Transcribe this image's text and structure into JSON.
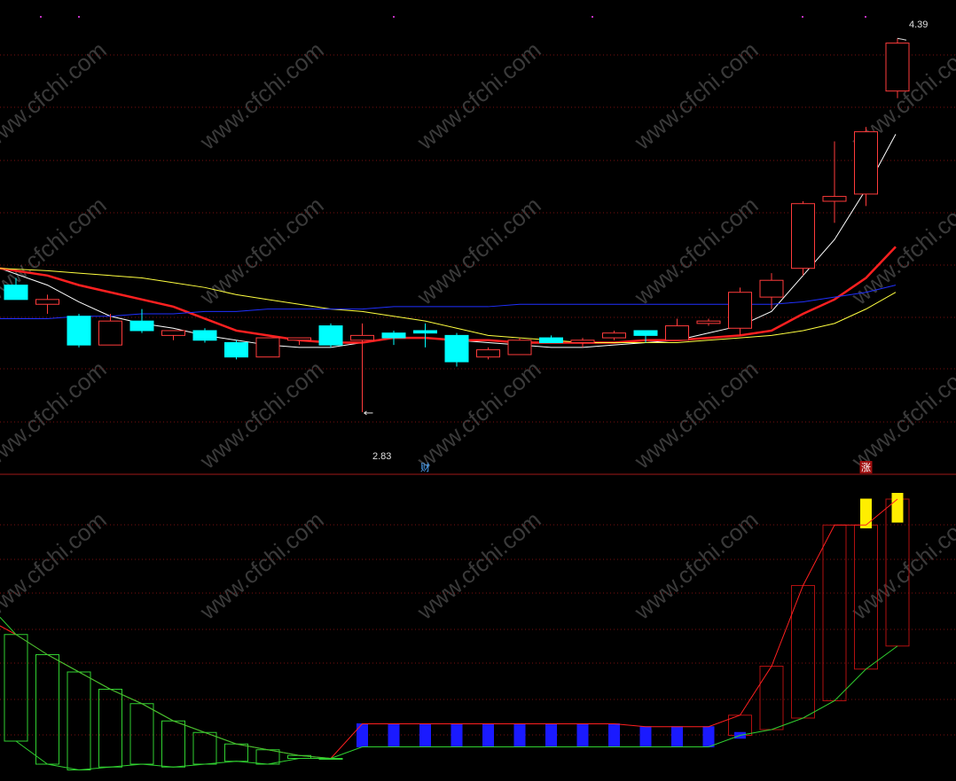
{
  "watermark": "www.cfchi.com",
  "chart_data": [
    {
      "type": "candlestick",
      "title": "",
      "ylim": [
        2.7,
        4.45
      ],
      "grid": "dotted-red-horizontal",
      "annotations": {
        "high_label": "4.39",
        "low_label": "2.83"
      },
      "markers": [
        {
          "text": "财",
          "candle_index": 13,
          "color": "#4fa8ff"
        },
        {
          "text": "涨",
          "candle_index": 27,
          "color": "#ff3030"
        }
      ],
      "colors": {
        "up": "#ff3b3b",
        "down": "#00ffff"
      },
      "candles": [
        {
          "o": 3.36,
          "h": 3.39,
          "l": 3.3,
          "c": 3.3
        },
        {
          "o": 3.28,
          "h": 3.32,
          "l": 3.24,
          "c": 3.3
        },
        {
          "o": 3.23,
          "h": 3.24,
          "l": 3.1,
          "c": 3.11
        },
        {
          "o": 3.11,
          "h": 3.24,
          "l": 3.11,
          "c": 3.21
        },
        {
          "o": 3.21,
          "h": 3.26,
          "l": 3.16,
          "c": 3.17
        },
        {
          "o": 3.15,
          "h": 3.17,
          "l": 3.13,
          "c": 3.17
        },
        {
          "o": 3.17,
          "h": 3.18,
          "l": 3.12,
          "c": 3.13
        },
        {
          "o": 3.12,
          "h": 3.13,
          "l": 3.05,
          "c": 3.06
        },
        {
          "o": 3.06,
          "h": 3.14,
          "l": 3.06,
          "c": 3.14
        },
        {
          "o": 3.13,
          "h": 3.14,
          "l": 3.11,
          "c": 3.14
        },
        {
          "o": 3.19,
          "h": 3.2,
          "l": 3.1,
          "c": 3.11
        },
        {
          "o": 3.13,
          "h": 3.2,
          "l": 2.83,
          "c": 3.15
        },
        {
          "o": 3.16,
          "h": 3.17,
          "l": 3.11,
          "c": 3.14
        },
        {
          "o": 3.17,
          "h": 3.2,
          "l": 3.1,
          "c": 3.16
        },
        {
          "o": 3.15,
          "h": 3.16,
          "l": 3.02,
          "c": 3.04
        },
        {
          "o": 3.06,
          "h": 3.1,
          "l": 3.05,
          "c": 3.09
        },
        {
          "o": 3.07,
          "h": 3.14,
          "l": 3.07,
          "c": 3.13
        },
        {
          "o": 3.14,
          "h": 3.15,
          "l": 3.12,
          "c": 3.12
        },
        {
          "o": 3.12,
          "h": 3.14,
          "l": 3.1,
          "c": 3.13
        },
        {
          "o": 3.14,
          "h": 3.17,
          "l": 3.13,
          "c": 3.16
        },
        {
          "o": 3.17,
          "h": 3.17,
          "l": 3.12,
          "c": 3.15
        },
        {
          "o": 3.13,
          "h": 3.22,
          "l": 3.13,
          "c": 3.19
        },
        {
          "o": 3.2,
          "h": 3.22,
          "l": 3.19,
          "c": 3.21
        },
        {
          "o": 3.18,
          "h": 3.35,
          "l": 3.15,
          "c": 3.33
        },
        {
          "o": 3.31,
          "h": 3.41,
          "l": 3.26,
          "c": 3.38
        },
        {
          "o": 3.43,
          "h": 3.71,
          "l": 3.4,
          "c": 3.7
        },
        {
          "o": 3.71,
          "h": 3.96,
          "l": 3.62,
          "c": 3.73
        },
        {
          "o": 3.74,
          "h": 4.02,
          "l": 3.69,
          "c": 4.0
        },
        {
          "o": 4.17,
          "h": 4.39,
          "l": 4.14,
          "c": 4.37
        }
      ],
      "series": [
        {
          "name": "",
          "color": "#ffffff",
          "values": [
            3.43,
            3.36,
            3.29,
            3.23,
            3.2,
            3.18,
            3.15,
            3.13,
            3.11,
            3.1,
            3.1,
            3.12,
            3.14,
            3.14,
            3.13,
            3.12,
            3.11,
            3.1,
            3.1,
            3.11,
            3.12,
            3.13,
            3.16,
            3.19,
            3.25,
            3.4,
            3.55,
            3.76,
            3.99
          ]
        },
        {
          "name": "",
          "color": "#ff2020",
          "values": [
            3.43,
            3.4,
            3.36,
            3.33,
            3.3,
            3.27,
            3.22,
            3.17,
            3.15,
            3.13,
            3.12,
            3.12,
            3.14,
            3.14,
            3.13,
            3.13,
            3.12,
            3.12,
            3.12,
            3.12,
            3.13,
            3.13,
            3.14,
            3.15,
            3.17,
            3.24,
            3.3,
            3.39,
            3.52
          ]
        },
        {
          "name": "",
          "color": "#ffff40",
          "values": [
            3.43,
            3.42,
            3.41,
            3.4,
            3.39,
            3.37,
            3.35,
            3.32,
            3.3,
            3.28,
            3.26,
            3.25,
            3.23,
            3.21,
            3.18,
            3.15,
            3.14,
            3.13,
            3.12,
            3.12,
            3.12,
            3.12,
            3.13,
            3.14,
            3.15,
            3.17,
            3.2,
            3.26,
            3.33
          ]
        },
        {
          "name": "",
          "color": "#2030ff",
          "values": [
            3.22,
            3.22,
            3.23,
            3.23,
            3.24,
            3.24,
            3.25,
            3.25,
            3.26,
            3.26,
            3.26,
            3.26,
            3.27,
            3.27,
            3.27,
            3.27,
            3.28,
            3.28,
            3.28,
            3.28,
            3.28,
            3.28,
            3.28,
            3.28,
            3.28,
            3.29,
            3.31,
            3.33,
            3.36
          ]
        }
      ]
    },
    {
      "type": "bar",
      "title": "",
      "ylim": [
        0,
        100
      ],
      "grid": "dotted-red-horizontal",
      "colors": {
        "rising": "#ff2020",
        "falling": "#30d030",
        "blue": "#1a1aff",
        "yellow": "#ffee00"
      },
      "bars": [
        {
          "top": 49,
          "bottom": 12,
          "style": "green"
        },
        {
          "top": 42,
          "bottom": 4,
          "style": "green"
        },
        {
          "top": 36,
          "bottom": 2,
          "style": "green"
        },
        {
          "top": 30,
          "bottom": 3,
          "style": "green"
        },
        {
          "top": 25,
          "bottom": 4,
          "style": "green"
        },
        {
          "top": 19,
          "bottom": 3,
          "style": "green"
        },
        {
          "top": 15,
          "bottom": 4,
          "style": "green"
        },
        {
          "top": 11,
          "bottom": 5,
          "style": "green"
        },
        {
          "top": 9,
          "bottom": 4,
          "style": "green"
        },
        {
          "top": 7,
          "bottom": 6,
          "style": "green"
        },
        {
          "top": 6,
          "bottom": 6,
          "style": "green"
        },
        {
          "top": 18,
          "bottom": 10,
          "style": "blue"
        },
        {
          "top": 18,
          "bottom": 10,
          "style": "blue"
        },
        {
          "top": 18,
          "bottom": 10,
          "style": "blue"
        },
        {
          "top": 18,
          "bottom": 10,
          "style": "blue"
        },
        {
          "top": 18,
          "bottom": 10,
          "style": "blue"
        },
        {
          "top": 18,
          "bottom": 10,
          "style": "blue"
        },
        {
          "top": 18,
          "bottom": 10,
          "style": "blue"
        },
        {
          "top": 18,
          "bottom": 10,
          "style": "blue"
        },
        {
          "top": 18,
          "bottom": 10,
          "style": "blue"
        },
        {
          "top": 17,
          "bottom": 10,
          "style": "blue"
        },
        {
          "top": 17,
          "bottom": 10,
          "style": "blue"
        },
        {
          "top": 17,
          "bottom": 10,
          "style": "blue"
        },
        {
          "top": 21,
          "bottom": 14,
          "style": "red"
        },
        {
          "top": 38,
          "bottom": 16,
          "style": "red"
        },
        {
          "top": 66,
          "bottom": 20,
          "style": "red"
        },
        {
          "top": 87,
          "bottom": 26,
          "style": "red"
        },
        {
          "top": 87,
          "bottom": 37,
          "style": "red"
        },
        {
          "top": 96,
          "bottom": 45,
          "style": "red"
        }
      ],
      "overlay_bars": [
        {
          "index": 22,
          "top": 16,
          "bottom": 13,
          "color": "#1a1aff"
        },
        {
          "index": 23,
          "top": 15,
          "bottom": 13,
          "color": "#1a1aff"
        },
        {
          "index": 27,
          "top": 96,
          "bottom": 86,
          "color": "#ffee00"
        },
        {
          "index": 28,
          "top": 98,
          "bottom": 88,
          "color": "#ffee00"
        }
      ]
    }
  ]
}
